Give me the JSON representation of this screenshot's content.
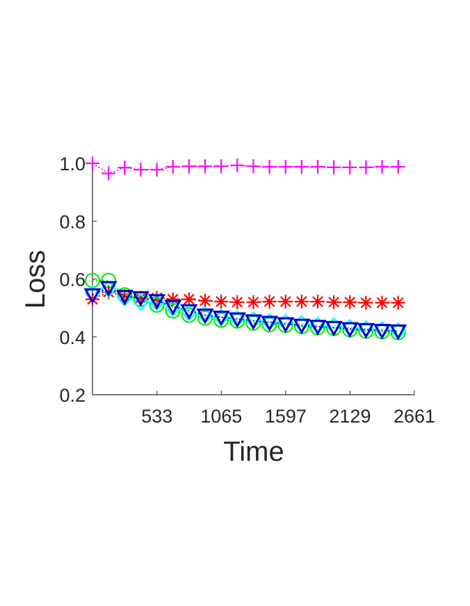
{
  "chart_data": {
    "type": "line",
    "title": "",
    "xlabel": "Time",
    "ylabel": "Loss",
    "xlim": [
      0,
      2661
    ],
    "ylim": [
      0.2,
      1.0
    ],
    "xticks": [
      533,
      1065,
      1597,
      2129,
      2661
    ],
    "xtick_labels": [
      "533",
      "1065",
      "1597",
      "2129",
      "2661"
    ],
    "yticks": [
      0.2,
      0.4,
      0.6,
      0.8,
      1.0
    ],
    "ytick_labels": [
      "0.2",
      "0.4",
      "0.6",
      "0.8",
      "1.0"
    ],
    "grid": false,
    "legend": "none",
    "x": [
      0,
      133,
      266,
      399,
      532,
      665,
      798,
      931,
      1064,
      1197,
      1330,
      1463,
      1596,
      1729,
      1862,
      1995,
      2128,
      2261,
      2394,
      2527
    ],
    "series": [
      {
        "color": "#ff00ff",
        "marker": "plus",
        "values": [
          1.0,
          0.965,
          0.985,
          0.978,
          0.978,
          0.988,
          0.99,
          0.99,
          0.99,
          0.993,
          0.99,
          0.988,
          0.988,
          0.988,
          0.988,
          0.986,
          0.986,
          0.986,
          0.988,
          0.988
        ]
      },
      {
        "color": "#ff0000",
        "marker": "asterisk",
        "values": [
          0.53,
          0.555,
          0.54,
          0.535,
          0.535,
          0.53,
          0.53,
          0.525,
          0.522,
          0.52,
          0.52,
          0.522,
          0.522,
          0.522,
          0.522,
          0.52,
          0.52,
          0.518,
          0.518,
          0.518
        ]
      },
      {
        "color": "#00ee00",
        "marker": "circle",
        "values": [
          0.595,
          0.595,
          0.545,
          0.53,
          0.51,
          0.49,
          0.475,
          0.465,
          0.458,
          0.455,
          0.448,
          0.442,
          0.44,
          0.436,
          0.432,
          0.43,
          0.425,
          0.42,
          0.418,
          0.415
        ]
      },
      {
        "color": "#00ffff",
        "marker": "diamond",
        "values": [
          0.55,
          0.565,
          0.535,
          0.52,
          0.52,
          0.5,
          0.485,
          0.475,
          0.468,
          0.462,
          0.458,
          0.452,
          0.45,
          0.446,
          0.44,
          0.438,
          0.432,
          0.428,
          0.425,
          0.42
        ]
      },
      {
        "color": "#0000cc",
        "marker": "triangle-down",
        "values": [
          0.545,
          0.57,
          0.54,
          0.535,
          0.525,
          0.505,
          0.49,
          0.475,
          0.468,
          0.462,
          0.455,
          0.45,
          0.445,
          0.44,
          0.436,
          0.432,
          0.428,
          0.425,
          0.422,
          0.42
        ]
      }
    ]
  }
}
